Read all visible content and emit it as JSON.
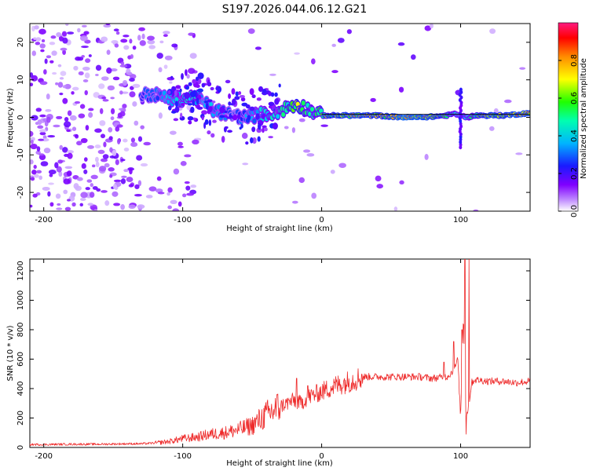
{
  "title": "S197.2026.044.06.12.G21",
  "colors": {
    "line": "#ee2a2a",
    "axis": "#000000",
    "background": "#ffffff"
  },
  "chart_data": [
    {
      "type": "heatmap",
      "xlabel": "Height of straight line (km)",
      "ylabel": "Frequency (Hz)",
      "xlim": [
        -210,
        150
      ],
      "ylim": [
        -25,
        25
      ],
      "xticks": [
        -200,
        -100,
        0,
        100
      ],
      "xtick_labels": [
        "-200",
        "-100",
        "0",
        "100"
      ],
      "yticks": [
        20,
        10,
        0,
        -10,
        -20
      ],
      "ytick_labels": [
        "20",
        "10",
        "0",
        "-10",
        "-20"
      ],
      "colorbar": {
        "label": "Normalized spectral amplitude",
        "range": [
          0,
          1
        ],
        "ticks": [
          0.0,
          0.2,
          0.4,
          0.6,
          0.8
        ],
        "tick_labels": [
          "0.0",
          "0.2",
          "0.4",
          "0.6",
          "0.8"
        ],
        "colors": [
          "#ffffff",
          "#8000ff",
          "#0000ff",
          "#00e5ff",
          "#00ff00",
          "#ffff00",
          "#ff8000",
          "#ff0000",
          "#ff0080"
        ]
      },
      "ridge": {
        "x": [
          -130,
          -120,
          -110,
          -100,
          -92,
          -85,
          -78,
          -70,
          -62,
          -55,
          -48,
          -40,
          -32,
          -25,
          -18,
          -12,
          -6,
          0,
          10,
          20,
          30,
          40,
          50,
          60,
          70,
          80,
          90,
          95,
          100,
          105,
          110,
          120,
          130,
          140,
          150
        ],
        "freq": [
          6,
          6,
          5,
          5,
          5.5,
          4,
          2,
          1,
          0.5,
          0,
          0.5,
          1,
          1.5,
          2.5,
          3.5,
          2.5,
          1.5,
          0.5,
          0.5,
          0.5,
          0.5,
          0.5,
          0.2,
          0,
          0,
          0.2,
          0.5,
          1,
          0.5,
          0,
          0.5,
          0.5,
          0.5,
          0.8,
          1.2
        ],
        "amplitude": [
          0.3,
          0.35,
          0.4,
          0.45,
          0.5,
          0.35,
          0.4,
          0.35,
          0.3,
          0.35,
          0.4,
          0.45,
          0.5,
          0.55,
          0.7,
          0.55,
          0.5,
          0.6,
          0.75,
          0.8,
          0.8,
          0.75,
          0.8,
          0.9,
          0.85,
          0.8,
          0.6,
          0.5,
          0.4,
          0.45,
          0.6,
          0.8,
          0.75,
          0.85,
          0.8
        ]
      }
    },
    {
      "type": "line",
      "xlabel": "Height of straight line (km)",
      "ylabel": "SNR (10 * v/v)",
      "xlim": [
        -210,
        150
      ],
      "ylim": [
        0,
        1280
      ],
      "xticks": [
        -200,
        -100,
        0,
        100
      ],
      "xtick_labels": [
        "-200",
        "-100",
        "0",
        "100"
      ],
      "yticks": [
        0,
        200,
        400,
        600,
        800,
        1000,
        1200
      ],
      "ytick_labels": [
        "0",
        "200",
        "400",
        "600",
        "800",
        "1000",
        "1200"
      ],
      "series": [
        {
          "name": "SNR",
          "x": [
            -210,
            -200,
            -180,
            -160,
            -140,
            -130,
            -120,
            -110,
            -100,
            -90,
            -80,
            -70,
            -60,
            -50,
            -40,
            -30,
            -20,
            -15,
            -10,
            0,
            10,
            20,
            30,
            40,
            50,
            60,
            70,
            80,
            90,
            95,
            98,
            100,
            102,
            104,
            106,
            108,
            110,
            120,
            130,
            140,
            150
          ],
          "values": [
            20,
            20,
            22,
            22,
            25,
            25,
            30,
            40,
            60,
            70,
            90,
            100,
            120,
            150,
            220,
            280,
            320,
            300,
            340,
            380,
            420,
            450,
            480,
            480,
            480,
            480,
            480,
            470,
            480,
            520,
            600,
            200,
            900,
            200,
            300,
            440,
            460,
            450,
            450,
            440,
            450
          ],
          "spikes": [
            [
              -18,
              470
            ],
            [
              -10,
              420
            ],
            [
              88,
              580
            ],
            [
              95,
              720
            ],
            [
              101,
              800
            ],
            [
              103,
              1280
            ],
            [
              104,
              90
            ],
            [
              106,
              1280
            ]
          ]
        }
      ]
    }
  ]
}
